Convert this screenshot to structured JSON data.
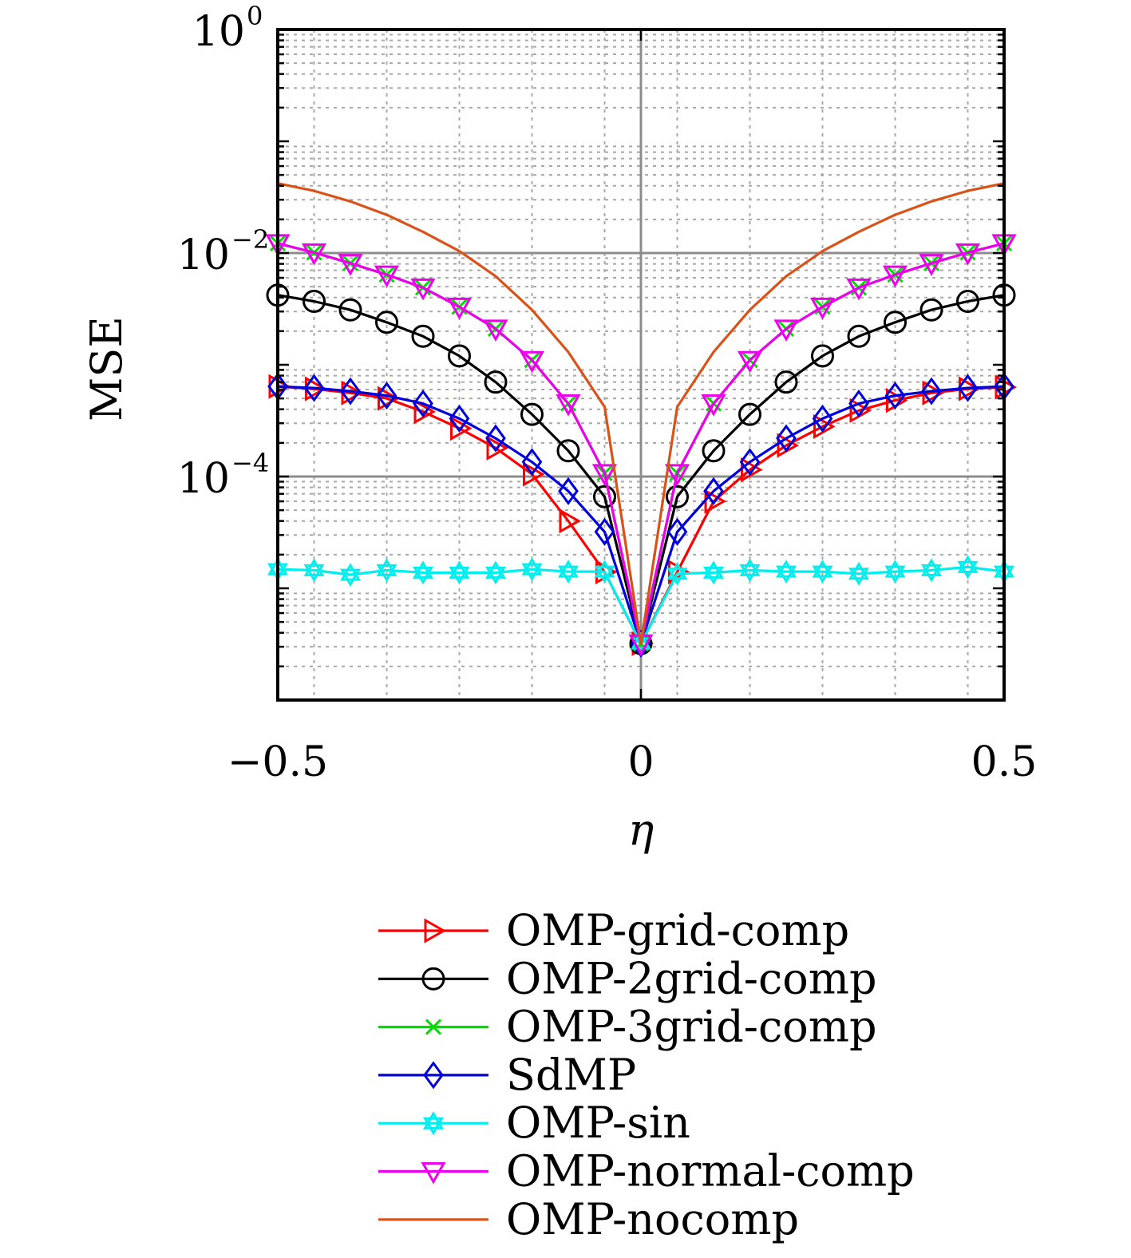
{
  "chart_data": {
    "type": "line",
    "xlabel": "η",
    "ylabel": "MSE",
    "xlim": [
      -0.5,
      0.5
    ],
    "ylim": [
      1e-06,
      1
    ],
    "yscale": "log",
    "grid": true,
    "legend_position": "below",
    "x_ticks": [
      {
        "value": -0.5,
        "label": "−0.5"
      },
      {
        "value": 0,
        "label": "0"
      },
      {
        "value": 0.5,
        "label": "0.5"
      }
    ],
    "y_ticks": [
      {
        "value": 1,
        "base": "10",
        "exp": "0"
      },
      {
        "value": 0.01,
        "base": "10",
        "exp": "−2"
      },
      {
        "value": 0.0001,
        "base": "10",
        "exp": "−4"
      }
    ],
    "x": [
      -0.5,
      -0.45,
      -0.4,
      -0.35,
      -0.3,
      -0.25,
      -0.2,
      -0.15,
      -0.1,
      -0.05,
      0,
      0.05,
      0.1,
      0.15,
      0.2,
      0.25,
      0.3,
      0.35,
      0.4,
      0.45,
      0.5
    ],
    "series": [
      {
        "name": "OMP-grid-comp",
        "color": "#ff0000",
        "marker": "triangle-right",
        "values": [
          0.00064,
          0.00061,
          0.00056,
          0.0005,
          0.00038,
          0.00027,
          0.00018,
          0.000105,
          4e-05,
          1.4e-05,
          3.2e-06,
          1.4e-05,
          6e-05,
          0.000115,
          0.00019,
          0.00028,
          0.00039,
          0.00048,
          0.00056,
          0.00061,
          0.00063
        ]
      },
      {
        "name": "OMP-2grid-comp",
        "color": "#000000",
        "marker": "circle",
        "values": [
          0.0042,
          0.0037,
          0.0031,
          0.0024,
          0.0018,
          0.0012,
          0.0007,
          0.00036,
          0.00017,
          6.6e-05,
          3.2e-06,
          6.6e-05,
          0.00017,
          0.00036,
          0.0007,
          0.0012,
          0.0018,
          0.0024,
          0.0031,
          0.0037,
          0.0042
        ]
      },
      {
        "name": "OMP-3grid-comp",
        "color": "#00dd00",
        "marker": "x",
        "values": [
          0.0122,
          0.0101,
          0.0081,
          0.0064,
          0.0049,
          0.0033,
          0.0021,
          0.0011,
          0.00045,
          0.000107,
          3.2e-06,
          0.000107,
          0.00045,
          0.0011,
          0.0021,
          0.0033,
          0.0049,
          0.0064,
          0.0081,
          0.0101,
          0.0122
        ]
      },
      {
        "name": "SdMP",
        "color": "#0000dd",
        "marker": "diamond",
        "values": [
          0.00064,
          0.00062,
          0.00058,
          0.00053,
          0.00045,
          0.00033,
          0.00022,
          0.000135,
          7.4e-05,
          3.2e-05,
          3.2e-06,
          3.2e-05,
          7.4e-05,
          0.000135,
          0.00022,
          0.00033,
          0.00045,
          0.00053,
          0.00058,
          0.00062,
          0.00064
        ]
      },
      {
        "name": "OMP-sin",
        "color": "#00eeee",
        "marker": "hexagram",
        "values": [
          1.48e-05,
          1.45e-05,
          1.32e-05,
          1.45e-05,
          1.38e-05,
          1.38e-05,
          1.38e-05,
          1.48e-05,
          1.41e-05,
          1.41e-05,
          3.2e-06,
          1.35e-05,
          1.38e-05,
          1.45e-05,
          1.41e-05,
          1.41e-05,
          1.35e-05,
          1.41e-05,
          1.45e-05,
          1.55e-05,
          1.41e-05
        ]
      },
      {
        "name": "OMP-normal-comp",
        "color": "#ee00ee",
        "marker": "triangle-down",
        "values": [
          0.0122,
          0.0101,
          0.0081,
          0.0064,
          0.0049,
          0.0033,
          0.0021,
          0.0011,
          0.00045,
          0.000107,
          3.2e-06,
          0.000107,
          0.00045,
          0.0011,
          0.0021,
          0.0033,
          0.0049,
          0.0064,
          0.0081,
          0.0101,
          0.0122
        ]
      },
      {
        "name": "OMP-nocomp",
        "color": "#d95319",
        "marker": "none",
        "values": [
          0.042,
          0.036,
          0.029,
          0.022,
          0.0155,
          0.0104,
          0.0062,
          0.0031,
          0.0013,
          0.00042,
          3.2e-06,
          0.00042,
          0.0013,
          0.0031,
          0.0062,
          0.0104,
          0.0155,
          0.022,
          0.029,
          0.036,
          0.042
        ]
      }
    ]
  }
}
